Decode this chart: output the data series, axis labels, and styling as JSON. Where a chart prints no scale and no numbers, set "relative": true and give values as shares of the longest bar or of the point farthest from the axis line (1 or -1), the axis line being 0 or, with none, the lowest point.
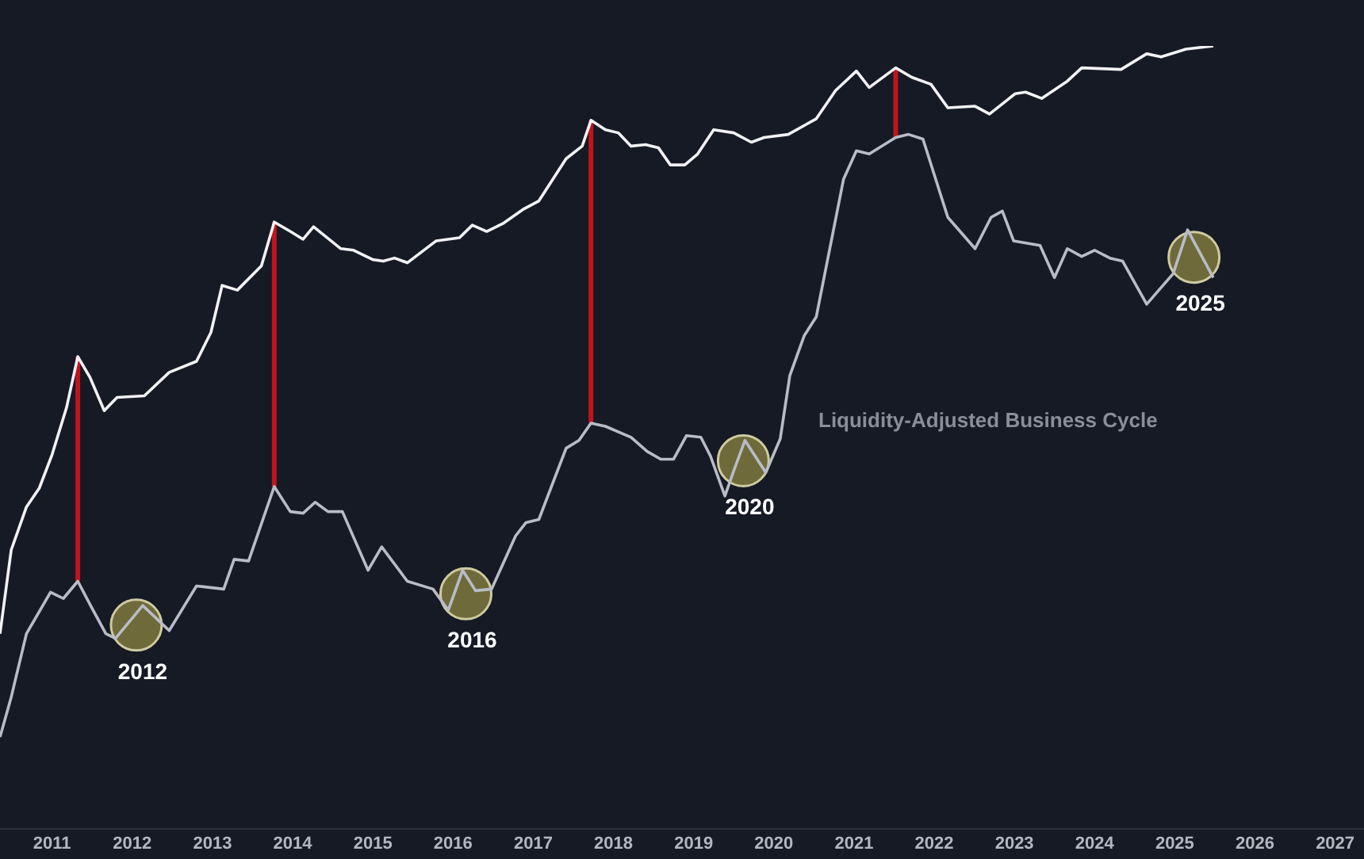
{
  "chart_data": {
    "type": "line",
    "relative": true,
    "grid": false,
    "legend": false,
    "marker": "none",
    "xlim": [
      2010.35,
      2027.36
    ],
    "xticks": [
      2011,
      2012,
      2013,
      2014,
      2015,
      2016,
      2017,
      2018,
      2019,
      2020,
      2021,
      2022,
      2023,
      2024,
      2025,
      2026,
      2027
    ],
    "series": [
      {
        "color": "#f2f2f5",
        "x": [
          2010.35,
          2010.49,
          2010.68,
          2010.84,
          2011.0,
          2011.18,
          2011.32,
          2011.47,
          2011.65,
          2011.81,
          2012.15,
          2012.46,
          2012.8,
          2012.98,
          2013.12,
          2013.31,
          2013.61,
          2013.77,
          2013.97,
          2014.13,
          2014.26,
          2014.6,
          2014.76,
          2015.0,
          2015.13,
          2015.27,
          2015.43,
          2015.79,
          2016.08,
          2016.24,
          2016.42,
          2016.62,
          2016.87,
          2017.07,
          2017.41,
          2017.61,
          2017.72,
          2017.9,
          2018.06,
          2018.22,
          2018.4,
          2018.56,
          2018.71,
          2018.89,
          2019.05,
          2019.25,
          2019.5,
          2019.72,
          2019.88,
          2020.18,
          2020.53,
          2020.77,
          2021.03,
          2021.19,
          2021.52,
          2021.72,
          2021.96,
          2022.17,
          2022.51,
          2022.69,
          2023.01,
          2023.14,
          2023.34,
          2023.66,
          2023.84,
          2024.33,
          2024.65,
          2024.83,
          2025.14,
          2025.48
        ],
        "values": [
          0.249,
          0.356,
          0.411,
          0.435,
          0.478,
          0.538,
          0.603,
          0.577,
          0.534,
          0.551,
          0.553,
          0.583,
          0.597,
          0.634,
          0.694,
          0.688,
          0.719,
          0.775,
          0.763,
          0.753,
          0.769,
          0.741,
          0.739,
          0.727,
          0.725,
          0.729,
          0.723,
          0.751,
          0.755,
          0.771,
          0.763,
          0.773,
          0.791,
          0.802,
          0.856,
          0.872,
          0.905,
          0.893,
          0.889,
          0.872,
          0.874,
          0.87,
          0.848,
          0.848,
          0.862,
          0.893,
          0.889,
          0.877,
          0.883,
          0.887,
          0.907,
          0.943,
          0.968,
          0.947,
          0.972,
          0.96,
          0.951,
          0.921,
          0.923,
          0.913,
          0.939,
          0.941,
          0.933,
          0.955,
          0.972,
          0.97,
          0.99,
          0.986,
          0.996,
          1.0
        ]
      },
      {
        "name": "Liquidity-Adjusted Business Cycle",
        "color": "#b9bcc6",
        "x": [
          2010.35,
          2010.49,
          2010.68,
          2010.98,
          2011.14,
          2011.32,
          2011.49,
          2011.67,
          2011.79,
          2012.13,
          2012.46,
          2012.8,
          2013.14,
          2013.27,
          2013.45,
          2013.77,
          2013.97,
          2014.13,
          2014.28,
          2014.44,
          2014.62,
          2014.94,
          2015.11,
          2015.43,
          2015.75,
          2015.94,
          2016.12,
          2016.28,
          2016.48,
          2016.78,
          2016.91,
          2017.07,
          2017.41,
          2017.57,
          2017.72,
          2017.9,
          2018.22,
          2018.42,
          2018.59,
          2018.75,
          2018.91,
          2019.09,
          2019.21,
          2019.39,
          2019.5,
          2019.64,
          2019.9,
          2020.08,
          2020.2,
          2020.38,
          2020.53,
          2020.87,
          2021.03,
          2021.19,
          2021.52,
          2021.68,
          2021.86,
          2022.17,
          2022.51,
          2022.71,
          2022.85,
          2022.99,
          2023.32,
          2023.5,
          2023.66,
          2023.84,
          2024.0,
          2024.19,
          2024.35,
          2024.65,
          2024.98,
          2025.16,
          2025.48
        ],
        "values": [
          0.117,
          0.168,
          0.249,
          0.302,
          0.294,
          0.316,
          0.283,
          0.249,
          0.243,
          0.285,
          0.253,
          0.31,
          0.306,
          0.344,
          0.342,
          0.437,
          0.405,
          0.403,
          0.417,
          0.405,
          0.405,
          0.33,
          0.36,
          0.316,
          0.306,
          0.279,
          0.33,
          0.304,
          0.306,
          0.374,
          0.391,
          0.395,
          0.486,
          0.496,
          0.518,
          0.514,
          0.5,
          0.482,
          0.472,
          0.472,
          0.502,
          0.5,
          0.476,
          0.425,
          0.457,
          0.496,
          0.455,
          0.498,
          0.579,
          0.63,
          0.654,
          0.83,
          0.866,
          0.862,
          0.883,
          0.887,
          0.881,
          0.781,
          0.741,
          0.781,
          0.789,
          0.751,
          0.745,
          0.704,
          0.741,
          0.731,
          0.739,
          0.729,
          0.725,
          0.67,
          0.709,
          0.765,
          0.704
        ]
      }
    ],
    "ref_lines": [
      {
        "axis": "x",
        "value": 2011.32,
        "color": "#c0141c"
      },
      {
        "axis": "x",
        "value": 2013.77,
        "color": "#c0141c"
      },
      {
        "axis": "x",
        "value": 2017.72,
        "color": "#c0141c"
      },
      {
        "axis": "x",
        "value": 2021.52,
        "color": "#c0141c"
      }
    ],
    "annotations": [
      {
        "text": "2012",
        "x": 2012.05,
        "y": 0.26
      },
      {
        "text": "2016",
        "x": 2016.16,
        "y": 0.3
      },
      {
        "text": "2020",
        "x": 2019.62,
        "y": 0.47
      },
      {
        "text": "2025",
        "x": 2025.24,
        "y": 0.73
      }
    ]
  }
}
